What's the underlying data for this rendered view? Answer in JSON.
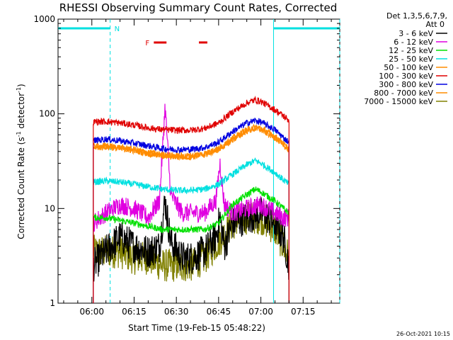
{
  "chart_data": {
    "type": "line",
    "title": "RHESSI Observing Summary Count Rates, Corrected",
    "xlabel": "Start Time (19-Feb-15 05:48:22)",
    "ylabel_parts": [
      "Corrected Count Rate (s",
      "-1",
      " detector",
      "-1",
      ")"
    ],
    "y_scale": "log",
    "ylim": [
      1,
      1000
    ],
    "xlim_minutes": [
      "05:48",
      "07:28"
    ],
    "x_ticks": [
      {
        "t": 360,
        "label": "06:00"
      },
      {
        "t": 375,
        "label": "06:15"
      },
      {
        "t": 390,
        "label": "06:30"
      },
      {
        "t": 405,
        "label": "06:45"
      },
      {
        "t": 420,
        "label": "07:00"
      },
      {
        "t": 435,
        "label": "07:15"
      }
    ],
    "y_ticks": [
      {
        "v": 1,
        "label": "1"
      },
      {
        "v": 10,
        "label": "10"
      },
      {
        "v": 100,
        "label": "100"
      },
      {
        "v": 1000,
        "label": "1000"
      }
    ],
    "legend_header": [
      "Det 1,3,5,6,7,9,",
      "Att 0"
    ],
    "legend_position": "right",
    "series": [
      {
        "name": "3 - 6 keV",
        "color": "#000000",
        "x": [
          360.5,
          365,
          370,
          375,
          380,
          384,
          386,
          388,
          392,
          395,
          400,
          404,
          405.5,
          407,
          410,
          415,
          420,
          425,
          428,
          430
        ],
        "y": [
          2.5,
          3.5,
          5,
          4,
          3.5,
          4,
          12,
          4.5,
          3,
          3,
          3.5,
          5,
          8,
          4,
          7,
          8,
          9,
          7,
          5,
          2.5
        ]
      },
      {
        "name": "6 - 12 keV",
        "color": "#e000e0",
        "x": [
          360.5,
          365,
          370,
          375,
          380,
          384,
          386,
          388,
          392,
          395,
          400,
          404,
          405.5,
          407,
          410,
          415,
          420,
          425,
          428,
          430
        ],
        "y": [
          7,
          9,
          11,
          10,
          8,
          12,
          120,
          14,
          9,
          9,
          9,
          12,
          30,
          11,
          9,
          10,
          11,
          9,
          8,
          8
        ]
      },
      {
        "name": "12 - 25 keV",
        "color": "#00e000",
        "x": [
          360.5,
          365,
          370,
          375,
          380,
          385,
          390,
          395,
          400,
          405,
          410,
          415,
          418,
          420,
          425,
          428,
          430
        ],
        "y": [
          8,
          8,
          7.5,
          7,
          6.5,
          6,
          6,
          6,
          6,
          7,
          11,
          14,
          16,
          15,
          12,
          10,
          9
        ]
      },
      {
        "name": "25 - 50 keV",
        "color": "#00e0e0",
        "x": [
          360.5,
          365,
          370,
          375,
          380,
          385,
          390,
          395,
          400,
          405,
          410,
          415,
          418,
          420,
          425,
          428,
          430
        ],
        "y": [
          19,
          19.5,
          19,
          18,
          17,
          16,
          15.5,
          15.5,
          16,
          18,
          23,
          29,
          32,
          30,
          24,
          20,
          18
        ]
      },
      {
        "name": "50 - 100 keV",
        "color": "#ff8c00",
        "x": [
          360.5,
          365,
          370,
          375,
          380,
          385,
          390,
          395,
          400,
          405,
          410,
          415,
          418,
          420,
          425,
          428,
          430
        ],
        "y": [
          45,
          46,
          44,
          42,
          39,
          37,
          36,
          36,
          38,
          43,
          55,
          68,
          72,
          70,
          58,
          48,
          42
        ]
      },
      {
        "name": "100 - 300 keV",
        "color": "#e00000",
        "x": [
          360.5,
          365,
          370,
          375,
          380,
          385,
          390,
          395,
          400,
          405,
          410,
          415,
          418,
          420,
          425,
          428,
          430
        ],
        "y": [
          82,
          83,
          80,
          76,
          71,
          68,
          67,
          67,
          70,
          80,
          105,
          130,
          140,
          135,
          110,
          95,
          85
        ]
      },
      {
        "name": "300 - 800 keV",
        "color": "#0000e0",
        "x": [
          360.5,
          365,
          370,
          375,
          380,
          385,
          390,
          395,
          400,
          405,
          410,
          415,
          418,
          420,
          425,
          428,
          430
        ],
        "y": [
          52,
          54,
          52,
          49,
          46,
          43,
          42,
          42,
          44,
          50,
          65,
          80,
          85,
          82,
          68,
          56,
          50
        ]
      },
      {
        "name": "800 - 7000 keV",
        "color": "#ff8c00",
        "x": [
          360.5,
          365,
          370,
          375,
          380,
          385,
          390,
          395,
          400,
          405,
          410,
          415,
          418,
          420,
          425,
          428,
          430
        ],
        "y": [
          44,
          45,
          43,
          41,
          38,
          36,
          35,
          35,
          37,
          42,
          53,
          66,
          70,
          68,
          56,
          47,
          41
        ]
      },
      {
        "name": "7000 - 15000 keV",
        "color": "#808000",
        "x": [
          360.5,
          365,
          370,
          375,
          380,
          385,
          390,
          395,
          400,
          405,
          410,
          415,
          420,
          425,
          428,
          430
        ],
        "y": [
          3.5,
          3.5,
          3.5,
          3,
          3,
          2.5,
          2.5,
          2.5,
          3,
          4.5,
          7,
          8,
          8,
          6,
          4,
          3
        ]
      }
    ],
    "annotations": {
      "night_label": "N",
      "flare_label": "F",
      "night_intervals": [
        [
          348,
          366.5
        ],
        [
          424.5,
          448
        ]
      ],
      "flare_intervals": [
        [
          382,
          386.5
        ],
        [
          398,
          401
        ]
      ]
    },
    "timestamp": "26-Oct-2021 10:15"
  }
}
